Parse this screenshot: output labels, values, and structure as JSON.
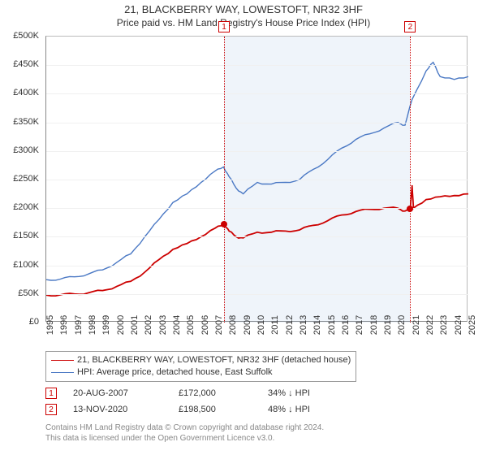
{
  "title": "21, BLACKBERRY WAY, LOWESTOFT, NR32 3HF",
  "subtitle": "Price paid vs. HM Land Registry's House Price Index (HPI)",
  "chart": {
    "type": "line",
    "background_color": "#ffffff",
    "grid_color": "#f0f0f0",
    "axis_color": "#888888",
    "text_color": "#333333",
    "fontsize_title": 13,
    "fontsize_subtitle": 12,
    "fontsize_tick": 11,
    "x_years": [
      1995,
      1996,
      1997,
      1998,
      1999,
      2000,
      2001,
      2002,
      2003,
      2004,
      2005,
      2006,
      2007,
      2008,
      2009,
      2010,
      2011,
      2012,
      2013,
      2014,
      2015,
      2016,
      2017,
      2018,
      2019,
      2020,
      2021,
      2022,
      2023,
      2024,
      2025
    ],
    "xlim": [
      1995,
      2025
    ],
    "ylim": [
      0,
      500000
    ],
    "yticks": [
      0,
      50000,
      100000,
      150000,
      200000,
      250000,
      300000,
      350000,
      400000,
      450000,
      500000
    ],
    "ytick_labels": [
      "£0",
      "£50K",
      "£100K",
      "£150K",
      "£200K",
      "£250K",
      "£300K",
      "£350K",
      "£400K",
      "£450K",
      "£500K"
    ],
    "shade": {
      "start_year": 2007.64,
      "end_year": 2020.87,
      "fill": "rgba(100,150,210,0.10)"
    },
    "series": [
      {
        "name": "price_paid",
        "label": "21, BLACKBERRY WAY, LOWESTOFT, NR32 3HF (detached house)",
        "color": "#cc0000",
        "line_width": 1.8,
        "data": [
          [
            1995,
            48000
          ],
          [
            1996,
            48500
          ],
          [
            1997,
            50000
          ],
          [
            1998,
            52000
          ],
          [
            1999,
            56000
          ],
          [
            2000,
            63000
          ],
          [
            2001,
            72000
          ],
          [
            2002,
            88000
          ],
          [
            2003,
            110000
          ],
          [
            2004,
            128000
          ],
          [
            2005,
            138000
          ],
          [
            2006,
            150000
          ],
          [
            2007,
            165000
          ],
          [
            2007.64,
            172000
          ],
          [
            2008,
            160000
          ],
          [
            2008.5,
            150000
          ],
          [
            2009,
            148000
          ],
          [
            2010,
            158000
          ],
          [
            2011,
            158000
          ],
          [
            2012,
            160000
          ],
          [
            2013,
            162000
          ],
          [
            2014,
            170000
          ],
          [
            2015,
            178000
          ],
          [
            2016,
            188000
          ],
          [
            2017,
            194000
          ],
          [
            2018,
            198000
          ],
          [
            2019,
            200000
          ],
          [
            2020,
            200000
          ],
          [
            2020.5,
            195000
          ],
          [
            2020.87,
            198500
          ],
          [
            2021,
            240000
          ],
          [
            2021.1,
            200000
          ],
          [
            2022,
            215000
          ],
          [
            2023,
            220000
          ],
          [
            2024,
            222000
          ],
          [
            2025,
            225000
          ]
        ]
      },
      {
        "name": "hpi",
        "label": "HPI: Average price, detached house, East Suffolk",
        "color": "#4a78c4",
        "line_width": 1.4,
        "data": [
          [
            1995,
            75000
          ],
          [
            1996,
            76000
          ],
          [
            1997,
            80000
          ],
          [
            1998,
            85000
          ],
          [
            1999,
            92000
          ],
          [
            2000,
            105000
          ],
          [
            2001,
            120000
          ],
          [
            2002,
            150000
          ],
          [
            2003,
            180000
          ],
          [
            2004,
            210000
          ],
          [
            2005,
            225000
          ],
          [
            2006,
            245000
          ],
          [
            2007,
            265000
          ],
          [
            2007.6,
            272000
          ],
          [
            2008,
            255000
          ],
          [
            2008.5,
            235000
          ],
          [
            2009,
            225000
          ],
          [
            2010,
            245000
          ],
          [
            2011,
            242000
          ],
          [
            2012,
            245000
          ],
          [
            2013,
            250000
          ],
          [
            2014,
            268000
          ],
          [
            2015,
            285000
          ],
          [
            2016,
            305000
          ],
          [
            2017,
            320000
          ],
          [
            2018,
            330000
          ],
          [
            2019,
            340000
          ],
          [
            2020,
            350000
          ],
          [
            2020.5,
            345000
          ],
          [
            2021,
            390000
          ],
          [
            2022,
            440000
          ],
          [
            2022.5,
            455000
          ],
          [
            2023,
            430000
          ],
          [
            2024,
            425000
          ],
          [
            2025,
            430000
          ]
        ]
      }
    ],
    "sales": [
      {
        "n": "1",
        "year": 2007.64,
        "date": "20-AUG-2007",
        "price": 172000,
        "price_label": "£172,000",
        "diff_label": "34% ↓ HPI",
        "color": "#cc0000"
      },
      {
        "n": "2",
        "year": 2020.87,
        "date": "13-NOV-2020",
        "price": 198500,
        "price_label": "£198,500",
        "diff_label": "48% ↓ HPI",
        "color": "#cc0000"
      }
    ]
  },
  "footer": {
    "line1": "Contains HM Land Registry data © Crown copyright and database right 2024.",
    "line2": "This data is licensed under the Open Government Licence v3.0."
  }
}
